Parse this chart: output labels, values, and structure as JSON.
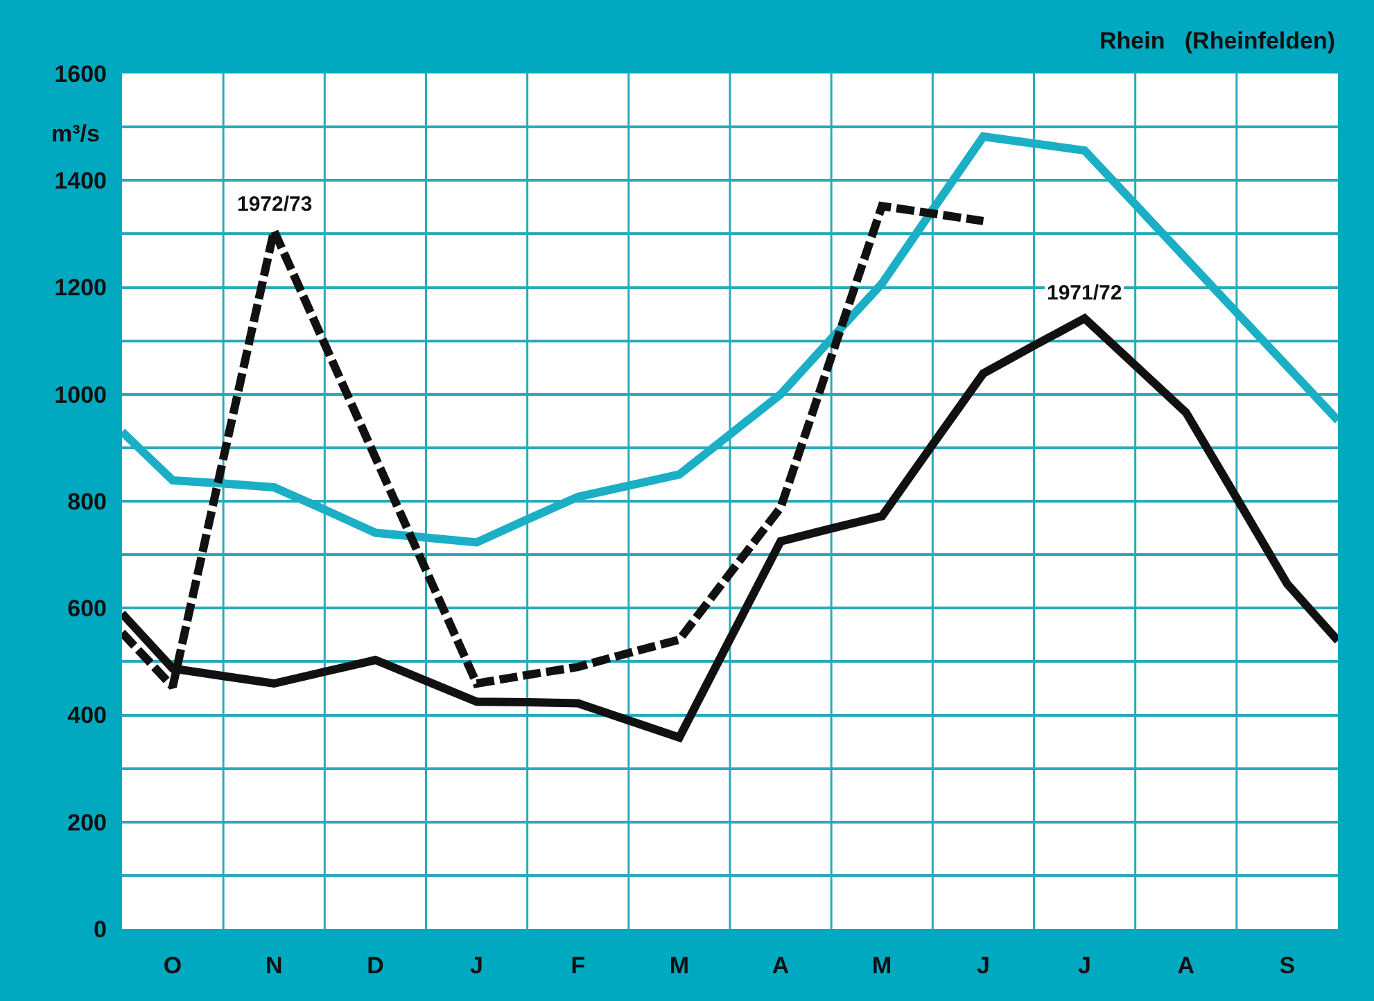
{
  "chart_data": {
    "type": "line",
    "title": "Rhein   (Rheinfelden)",
    "ylabel": "m³/s",
    "categories": [
      null,
      "O",
      null,
      "N",
      null,
      "D",
      null,
      "J",
      null,
      "F",
      null,
      "M",
      null,
      "A",
      null,
      "M",
      null,
      "J",
      null,
      "J",
      null,
      "A",
      null,
      "S",
      null
    ],
    "ylim": [
      0,
      1600
    ],
    "yticks": [
      0,
      {
        "value": 100,
        "label": null
      },
      200,
      {
        "value": 300,
        "label": null
      },
      400,
      {
        "value": 500,
        "label": null
      },
      600,
      {
        "value": 700,
        "label": null
      },
      800,
      {
        "value": 900,
        "label": null
      },
      1000,
      {
        "value": 1100,
        "label": null
      },
      1200,
      {
        "value": 1300,
        "label": null
      },
      1400,
      {
        "value": 1500,
        "label": null
      },
      1600
    ],
    "grid": true,
    "legend": false,
    "marker": "none",
    "series": [
      {
        "color": "#1aafc4",
        "line_style": "solid",
        "values": [
          930,
          839,
          833,
          826,
          784,
          741,
          732,
          723,
          766,
          808,
          829,
          850,
          925,
          1000,
          1104,
          1207,
          1345,
          1482,
          1469,
          1456,
          1355,
          1254,
          1153,
          1052,
          951
        ]
      },
      {
        "name": "1971/72",
        "color": "#111111",
        "line_style": "solid",
        "values": [
          590,
          487,
          473,
          459,
          481,
          503,
          464,
          425,
          424,
          422,
          390,
          358,
          542,
          725,
          749,
          772,
          906,
          1039,
          1091,
          1142,
          1054,
          966,
          806,
          645,
          539
        ]
      },
      {
        "name": "1972/73",
        "color": "#111111",
        "line_style": "dashed",
        "values": [
          554,
          453,
          880,
          1306,
          1094,
          882,
          671,
          459,
          475,
          490,
          516,
          541,
          665,
          788,
          1070,
          1352,
          1338,
          1324,
          null,
          null,
          null,
          null,
          null,
          null,
          null
        ]
      }
    ]
  }
}
